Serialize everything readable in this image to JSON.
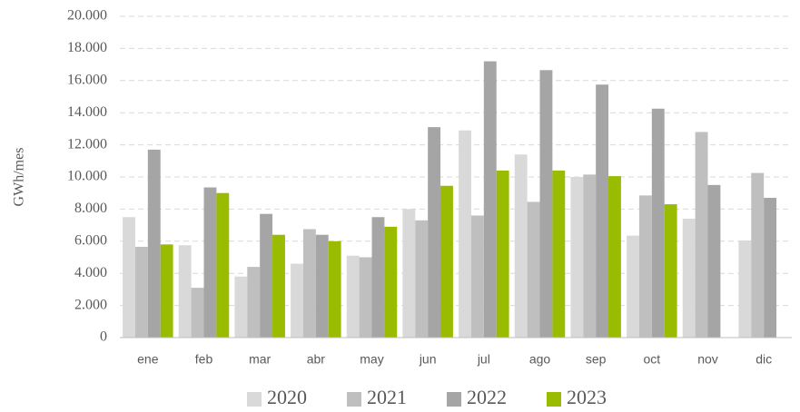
{
  "chart_data": {
    "type": "bar",
    "y_label": "GWh/mes",
    "categories": [
      "ene",
      "feb",
      "mar",
      "abr",
      "may",
      "jun",
      "jul",
      "ago",
      "sep",
      "oct",
      "nov",
      "dic"
    ],
    "series": [
      {
        "name": "2020",
        "color": "#d9d9d9",
        "values": [
          7500,
          5750,
          3800,
          4600,
          5100,
          8000,
          12900,
          11400,
          10000,
          6350,
          7400,
          6050
        ]
      },
      {
        "name": "2021",
        "color": "#bfbfbf",
        "values": [
          5650,
          3100,
          4400,
          6750,
          5000,
          7300,
          7600,
          8450,
          10150,
          8850,
          12800,
          10250
        ]
      },
      {
        "name": "2022",
        "color": "#a5a5a5",
        "values": [
          11700,
          9350,
          7700,
          6400,
          7500,
          13100,
          17200,
          16650,
          15750,
          14250,
          9500,
          8700
        ]
      },
      {
        "name": "2023",
        "color": "#99bb00",
        "values": [
          5800,
          9000,
          6400,
          6000,
          6900,
          9450,
          10400,
          10400,
          10050,
          8300,
          null,
          null
        ]
      }
    ],
    "ylim": [
      0,
      20000
    ],
    "yticks": [
      0,
      {
        "value": 2000,
        "label": "2.000"
      },
      {
        "value": 4000,
        "label": "4.000"
      },
      {
        "value": 6000,
        "label": "6.000"
      },
      {
        "value": 8000,
        "label": "8.000"
      },
      {
        "value": 10000,
        "label": "10.000"
      },
      {
        "value": 12000,
        "label": "12.000"
      },
      {
        "value": 14000,
        "label": "14.000"
      },
      {
        "value": 16000,
        "label": "16.000"
      },
      {
        "value": 18000,
        "label": "18.000"
      },
      {
        "value": 20000,
        "label": "20.000"
      }
    ],
    "grid": true,
    "legend": "bottom"
  }
}
